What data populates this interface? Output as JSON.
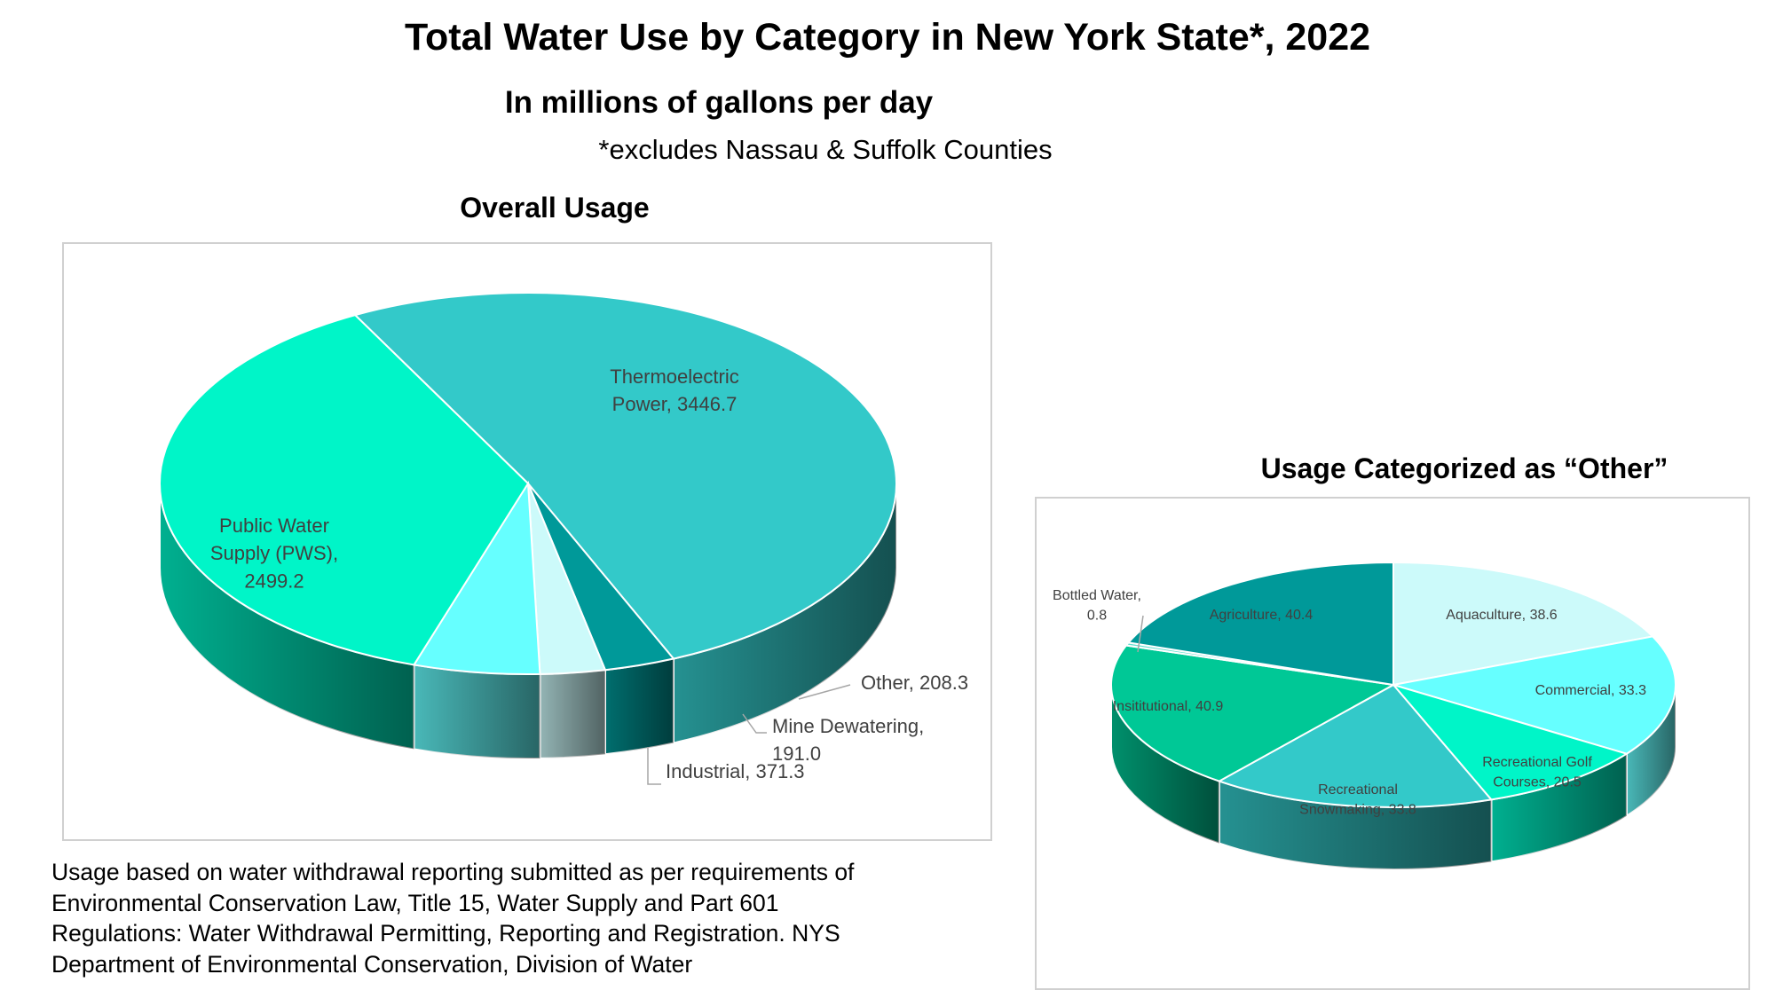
{
  "title": "Total Water Use by Category in New York State*, 2022",
  "subtitle": "In millions of gallons per day",
  "note": "*excludes Nassau & Suffolk Counties",
  "source": "Usage based on water withdrawal reporting submitted as per requirements of Environmental Conservation Law, Title 15, Water Supply and Part 601 Regulations: Water Withdrawal Permitting, Reporting and Registration. NYS Department of Environmental Conservation, Division of Water",
  "chart_data": [
    {
      "type": "pie",
      "title": "Overall Usage",
      "style": "3d",
      "slices": [
        {
          "label": "Thermoelectric Power",
          "value": 3446.7,
          "color": "#33c9c9",
          "label_lines": [
            "Thermoelectric",
            "Power, 3446.7"
          ]
        },
        {
          "label": "Other",
          "value": 208.3,
          "color": "#009999",
          "label_lines": [
            "Other, 208.3"
          ]
        },
        {
          "label": "Mine Dewatering",
          "value": 191.0,
          "color": "#ccfafa",
          "label_lines": [
            "Mine Dewatering,",
            "191.0"
          ]
        },
        {
          "label": "Industrial",
          "value": 371.3,
          "color": "#66ffff",
          "label_lines": [
            "Industrial, 371.3"
          ]
        },
        {
          "label": "Public Water Supply (PWS)",
          "value": 2499.2,
          "color": "#00f5c8",
          "label_lines": [
            "Public Water",
            "Supply (PWS),",
            "2499.2"
          ]
        }
      ]
    },
    {
      "type": "pie",
      "title": "Usage Categorized as “Other”",
      "style": "3d",
      "slices": [
        {
          "label": "Aquaculture",
          "value": 38.6,
          "color": "#ccfafa",
          "label_lines": [
            "Aquaculture, 38.6"
          ]
        },
        {
          "label": "Commercial",
          "value": 33.3,
          "color": "#66ffff",
          "label_lines": [
            "Commercial, 33.3"
          ]
        },
        {
          "label": "Recreational Golf Courses",
          "value": 20.5,
          "color": "#00f5c8",
          "label_lines": [
            "Recreational Golf",
            "Courses, 20.5"
          ]
        },
        {
          "label": "Recreational Snowmaking",
          "value": 33.8,
          "color": "#33c9c9",
          "label_lines": [
            "Recreational",
            "Snowmaking, 33.8"
          ]
        },
        {
          "label": "Insititutional",
          "value": 40.9,
          "color": "#00c896",
          "label_lines": [
            "Insititutional, 40.9"
          ]
        },
        {
          "label": "Bottled Water",
          "value": 0.8,
          "color": "#66e0d0",
          "label_lines": [
            "Bottled Water,",
            "0.8"
          ]
        },
        {
          "label": "Agriculture",
          "value": 40.4,
          "color": "#009999",
          "label_lines": [
            "Agriculture, 40.4"
          ]
        }
      ]
    }
  ]
}
